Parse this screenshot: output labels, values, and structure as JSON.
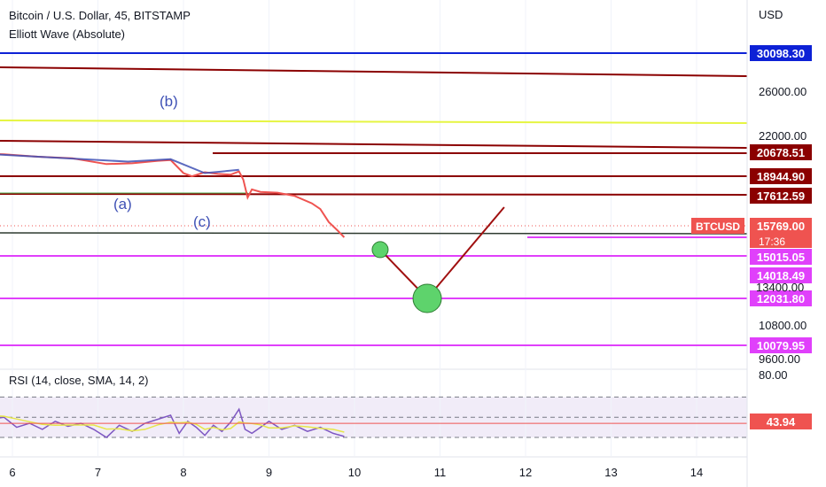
{
  "header": {
    "title": "Bitcoin / U.S. Dollar, 45, BITSTAMP",
    "indicator": "Elliott Wave (Absolute)"
  },
  "chart_data": {
    "type": "line",
    "title": "Bitcoin / U.S. Dollar, 45, BITSTAMP",
    "currency": "USD",
    "symbol": "BTCUSD",
    "last_price": "15769.00",
    "countdown": "17:36",
    "x_ticks": [
      "6",
      "7",
      "8",
      "9",
      "10",
      "11",
      "12",
      "13",
      "14"
    ],
    "y_ticks": [
      "26000.00",
      "22000.00",
      "10800.00",
      "9600.00"
    ],
    "y_ticks_partial": [
      "13400.00"
    ],
    "price_labels": [
      {
        "value": "30098.30",
        "color": "#0d21d6"
      },
      {
        "value": "20678.51",
        "color": "#8b0000"
      },
      {
        "value": "18944.90",
        "color": "#8b0000"
      },
      {
        "value": "17612.59",
        "color": "#8b0000"
      },
      {
        "value": "15769.00",
        "color": "#ef5350"
      },
      {
        "value": "15015.05",
        "color": "#e040fb"
      },
      {
        "value": "14018.49",
        "color": "#e040fb"
      },
      {
        "value": "12031.80",
        "color": "#e040fb"
      },
      {
        "value": "10079.95",
        "color": "#e040fb"
      }
    ],
    "wave_labels": [
      "(b)",
      "(a)",
      "(c)"
    ],
    "price_series": {
      "x": [
        5.6,
        5.9,
        6.3,
        6.7,
        7.1,
        7.4,
        7.7,
        7.85,
        8.0,
        8.1,
        8.25,
        8.4,
        8.55,
        8.65,
        8.7,
        8.75,
        8.8,
        8.9,
        9.1,
        9.3,
        9.5,
        9.6,
        9.7,
        9.8,
        9.88
      ],
      "y": [
        20900,
        20850,
        20700,
        20600,
        20250,
        20300,
        20450,
        20500,
        19700,
        19500,
        19750,
        19650,
        19600,
        19800,
        19300,
        18200,
        18700,
        18550,
        18500,
        18300,
        17850,
        17500,
        16700,
        16200,
        15769
      ]
    },
    "projection": {
      "x": [
        10.3,
        10.85,
        11.75
      ],
      "y": [
        15015.05,
        12031.8,
        17612.59
      ]
    },
    "rsi": {
      "label": "RSI (14, close, SMA, 14, 2)",
      "value": "43.94",
      "upper_tick": "80.00",
      "levels": [
        70,
        50,
        30
      ],
      "x": [
        5.6,
        5.75,
        5.9,
        6.05,
        6.2,
        6.35,
        6.5,
        6.65,
        6.8,
        6.95,
        7.1,
        7.25,
        7.4,
        7.55,
        7.7,
        7.85,
        7.95,
        8.05,
        8.15,
        8.25,
        8.35,
        8.45,
        8.55,
        8.65,
        8.72,
        8.8,
        8.9,
        9.0,
        9.15,
        9.3,
        9.45,
        9.6,
        9.75,
        9.88
      ],
      "values": [
        55,
        48,
        50,
        40,
        44,
        38,
        46,
        41,
        44,
        38,
        30,
        42,
        36,
        44,
        48,
        52,
        34,
        46,
        40,
        32,
        42,
        36,
        45,
        58,
        38,
        34,
        40,
        46,
        38,
        42,
        36,
        40,
        34,
        31
      ]
    }
  }
}
